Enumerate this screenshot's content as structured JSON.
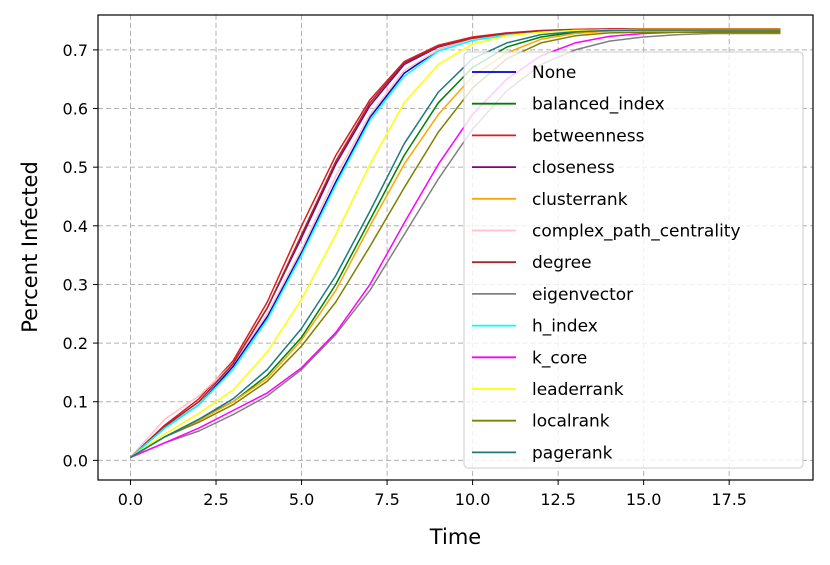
{
  "chart_data": {
    "type": "line",
    "title": "",
    "xlabel": "Time",
    "ylabel": "Percent Infected",
    "xlim": [
      -0.95,
      19.95
    ],
    "ylim": [
      -0.0335,
      0.7595
    ],
    "grid": true,
    "legend_position": "right",
    "xticks": [
      0.0,
      2.5,
      5.0,
      7.5,
      10.0,
      12.5,
      15.0,
      17.5
    ],
    "xtick_labels": [
      "0.0",
      "2.5",
      "5.0",
      "7.5",
      "10.0",
      "12.5",
      "15.0",
      "17.5"
    ],
    "yticks": [
      0.0,
      0.1,
      0.2,
      0.3,
      0.4,
      0.5,
      0.6,
      0.7
    ],
    "ytick_labels": [
      "0.0",
      "0.1",
      "0.2",
      "0.3",
      "0.4",
      "0.5",
      "0.6",
      "0.7"
    ],
    "x": [
      0,
      1,
      2,
      3,
      4,
      5,
      6,
      7,
      8,
      9,
      10,
      11,
      12,
      13,
      14,
      15,
      16,
      17,
      18,
      19
    ],
    "series": [
      {
        "name": "None",
        "color": "#0000cc",
        "values": [
          0.005,
          0.055,
          0.095,
          0.16,
          0.245,
          0.355,
          0.475,
          0.585,
          0.66,
          0.7,
          0.718,
          0.726,
          0.731,
          0.734,
          0.735,
          0.735,
          0.735,
          0.735,
          0.735,
          0.735
        ]
      },
      {
        "name": "balanced_index",
        "color": "#008000",
        "values": [
          0.005,
          0.04,
          0.07,
          0.1,
          0.145,
          0.21,
          0.3,
          0.41,
          0.52,
          0.61,
          0.67,
          0.705,
          0.722,
          0.73,
          0.733,
          0.734,
          0.734,
          0.734,
          0.734,
          0.734
        ]
      },
      {
        "name": "betweenness",
        "color": "#e31a1c",
        "values": [
          0.005,
          0.06,
          0.105,
          0.17,
          0.27,
          0.4,
          0.52,
          0.615,
          0.68,
          0.708,
          0.722,
          0.729,
          0.733,
          0.735,
          0.736,
          0.736,
          0.736,
          0.736,
          0.736,
          0.736
        ]
      },
      {
        "name": "closeness",
        "color": "#800080",
        "values": [
          0.005,
          0.058,
          0.1,
          0.165,
          0.26,
          0.38,
          0.505,
          0.605,
          0.675,
          0.705,
          0.72,
          0.728,
          0.732,
          0.734,
          0.735,
          0.735,
          0.735,
          0.735,
          0.735,
          0.735
        ]
      },
      {
        "name": "clusterrank",
        "color": "#ffa500",
        "values": [
          0.005,
          0.04,
          0.068,
          0.1,
          0.14,
          0.205,
          0.29,
          0.4,
          0.505,
          0.59,
          0.655,
          0.695,
          0.718,
          0.728,
          0.732,
          0.733,
          0.733,
          0.733,
          0.733,
          0.733
        ]
      },
      {
        "name": "complex_path_centrality",
        "color": "#ffc0cb",
        "values": [
          0.005,
          0.07,
          0.11,
          0.165,
          0.25,
          0.36,
          0.485,
          0.59,
          0.665,
          0.7,
          0.718,
          0.727,
          0.731,
          0.734,
          0.735,
          0.735,
          0.735,
          0.735,
          0.735,
          0.735
        ]
      },
      {
        "name": "degree",
        "color": "#a52a2a",
        "values": [
          0.005,
          0.058,
          0.1,
          0.165,
          0.26,
          0.385,
          0.51,
          0.61,
          0.678,
          0.706,
          0.72,
          0.728,
          0.732,
          0.734,
          0.735,
          0.735,
          0.735,
          0.735,
          0.735,
          0.735
        ]
      },
      {
        "name": "eigenvector",
        "color": "#808080",
        "values": [
          0.005,
          0.03,
          0.05,
          0.078,
          0.11,
          0.155,
          0.215,
          0.29,
          0.385,
          0.48,
          0.565,
          0.63,
          0.675,
          0.7,
          0.715,
          0.722,
          0.726,
          0.728,
          0.728,
          0.728
        ]
      },
      {
        "name": "h_index",
        "color": "#00ffff",
        "values": [
          0.005,
          0.055,
          0.095,
          0.155,
          0.24,
          0.35,
          0.47,
          0.58,
          0.655,
          0.698,
          0.716,
          0.725,
          0.73,
          0.733,
          0.734,
          0.735,
          0.735,
          0.735,
          0.735,
          0.735
        ]
      },
      {
        "name": "k_core",
        "color": "#ff00ff",
        "values": [
          0.005,
          0.03,
          0.055,
          0.085,
          0.115,
          0.158,
          0.218,
          0.3,
          0.405,
          0.505,
          0.59,
          0.65,
          0.69,
          0.712,
          0.723,
          0.728,
          0.73,
          0.731,
          0.731,
          0.731
        ]
      },
      {
        "name": "leaderrank",
        "color": "#ffff00",
        "values": [
          0.005,
          0.045,
          0.08,
          0.12,
          0.185,
          0.275,
          0.385,
          0.505,
          0.61,
          0.675,
          0.71,
          0.724,
          0.73,
          0.733,
          0.734,
          0.735,
          0.735,
          0.735,
          0.735,
          0.735
        ]
      },
      {
        "name": "localrank",
        "color": "#808000",
        "values": [
          0.005,
          0.04,
          0.065,
          0.095,
          0.135,
          0.195,
          0.27,
          0.365,
          0.465,
          0.56,
          0.635,
          0.685,
          0.712,
          0.724,
          0.729,
          0.73,
          0.73,
          0.73,
          0.73,
          0.73
        ]
      },
      {
        "name": "pagerank",
        "color": "#1c7a80",
        "values": [
          0.005,
          0.04,
          0.07,
          0.105,
          0.155,
          0.225,
          0.315,
          0.425,
          0.54,
          0.628,
          0.685,
          0.712,
          0.726,
          0.731,
          0.733,
          0.734,
          0.734,
          0.734,
          0.734,
          0.734
        ]
      }
    ]
  }
}
